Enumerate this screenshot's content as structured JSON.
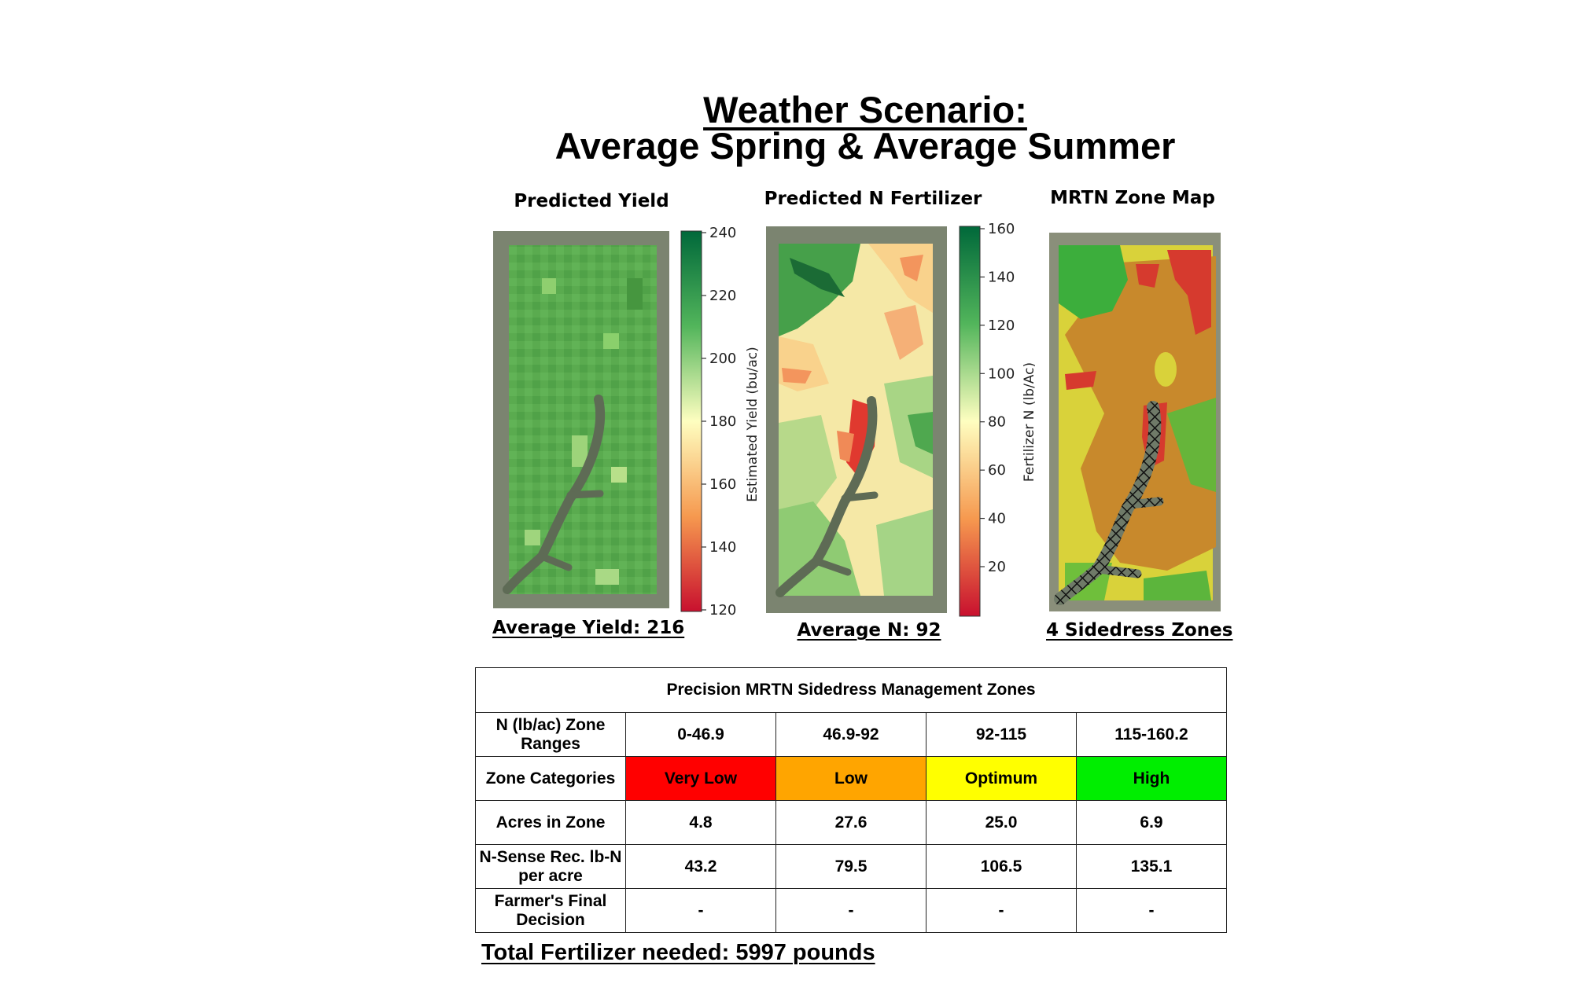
{
  "title_line1": "Weather Scenario:",
  "title_line2": "Average Spring & Average Summer",
  "panels": [
    {
      "title": "Predicted Yield",
      "summary": "Average Yield: 216",
      "colorbar_label": "Estimated Yield (bu/ac)",
      "ticks": [
        "240",
        "220",
        "200",
        "180",
        "160",
        "140",
        "120"
      ]
    },
    {
      "title": "Predicted N Fertilizer",
      "summary": "Average N: 92",
      "colorbar_label": "Fertilizer N (lb/Ac)",
      "ticks": [
        "160",
        "140",
        "120",
        "100",
        "80",
        "60",
        "40",
        "20"
      ]
    },
    {
      "title": "MRTN Zone Map",
      "summary": "4 Sidedress Zones"
    }
  ],
  "table": {
    "title": "Precision MRTN Sidedress Management Zones",
    "rows": [
      {
        "label": "N (lb/ac) Zone Ranges",
        "cells": [
          "0-46.9",
          "46.9-92",
          "92-115",
          "115-160.2"
        ]
      },
      {
        "label": "Zone Categories",
        "cells": [
          "Very Low",
          "Low",
          "Optimum",
          "High"
        ]
      },
      {
        "label": "Acres in Zone",
        "cells": [
          "4.8",
          "27.6",
          "25.0",
          "6.9"
        ]
      },
      {
        "label": "N-Sense Rec. lb-N per acre",
        "cells": [
          "43.2",
          "79.5",
          "106.5",
          "135.1"
        ]
      },
      {
        "label": "Farmer's Final Decision",
        "cells": [
          "-",
          "-",
          "-",
          "-"
        ]
      }
    ],
    "category_colors": [
      "#ff0000",
      "#ffa500",
      "#ffff00",
      "#00ee00"
    ]
  },
  "total": "Total Fertilizer needed: 5997 pounds"
}
